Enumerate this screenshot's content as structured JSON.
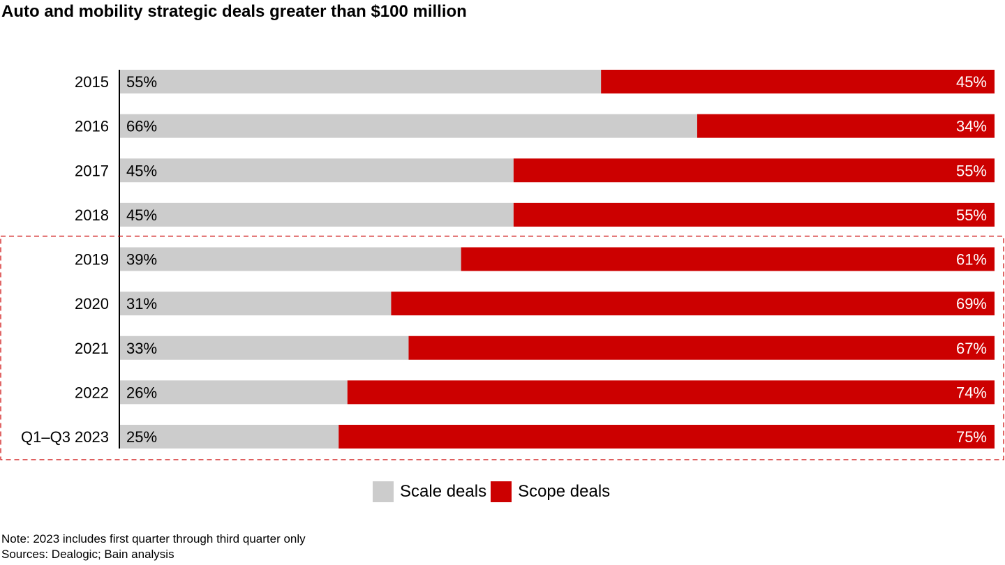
{
  "chart_data": {
    "type": "bar",
    "orientation": "horizontal",
    "stacked": true,
    "title": "Auto and mobility strategic deals greater than $100 million",
    "categories": [
      "2015",
      "2016",
      "2017",
      "2018",
      "2019",
      "2020",
      "2021",
      "2022",
      "Q1–Q3 2023"
    ],
    "series": [
      {
        "name": "Scale deals",
        "values": [
          55,
          66,
          45,
          45,
          39,
          31,
          33,
          26,
          25
        ],
        "labels": [
          "55%",
          "66%",
          "45%",
          "45%",
          "39%",
          "31%",
          "33%",
          "26%",
          "25%"
        ],
        "color": "#cccccc"
      },
      {
        "name": "Scope deals",
        "values": [
          45,
          34,
          55,
          55,
          61,
          69,
          67,
          74,
          75
        ],
        "labels": [
          "45%",
          "34%",
          "55%",
          "55%",
          "61%",
          "69%",
          "67%",
          "74%",
          "75%"
        ],
        "color": "#cc0000"
      }
    ],
    "xlim": [
      0,
      100
    ],
    "unit": "%",
    "highlight": {
      "from": "2019",
      "to": "Q1–Q3 2023",
      "style": "dashed",
      "color": "#cc0000"
    },
    "legend_position": "bottom"
  },
  "notes": {
    "note": "Note: 2023 includes first quarter through third quarter only",
    "sources": "Sources: Dealogic; Bain analysis"
  }
}
